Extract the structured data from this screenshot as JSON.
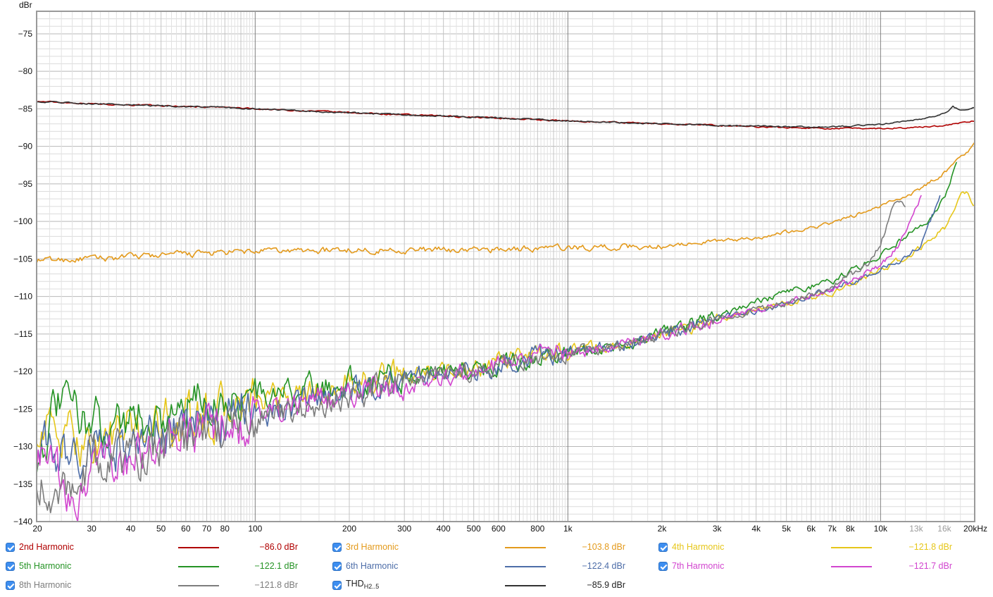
{
  "chart_data": {
    "type": "line",
    "y_unit_label": "dBr",
    "ylim": [
      -140,
      -72
    ],
    "y_ticks": [
      -75,
      -80,
      -85,
      -90,
      -95,
      -100,
      -105,
      -110,
      -115,
      -120,
      -125,
      -130,
      -135,
      -140
    ],
    "y_tick_labels": [
      "−75",
      "−80",
      "−85",
      "−90",
      "−95",
      "−100",
      "−105",
      "−110",
      "−115",
      "−120",
      "−125",
      "−130",
      "−135",
      "−140"
    ],
    "x_scale": "log",
    "xlim": [
      20,
      20000
    ],
    "x_ticks": [
      20,
      30,
      40,
      50,
      60,
      70,
      80,
      100,
      200,
      300,
      400,
      500,
      600,
      800,
      1000,
      2000,
      3000,
      4000,
      5000,
      6000,
      7000,
      8000,
      10000,
      13000,
      16000,
      20000
    ],
    "x_tick_labels": [
      "20",
      "30",
      "40",
      "50",
      "60",
      "70",
      "80",
      "100",
      "200",
      "300",
      "400",
      "500",
      "600",
      "800",
      "1k",
      "2k",
      "3k",
      "4k",
      "5k",
      "6k",
      "7k",
      "8k",
      "10k",
      "13k",
      "16k",
      "20kHz"
    ],
    "grid": true,
    "series": [
      {
        "name": "2nd Harmonic",
        "color": "#b00000",
        "value_label": "−86.0 dBr",
        "x": [
          20,
          30,
          50,
          80,
          100,
          200,
          300,
          500,
          1000,
          2000,
          3000,
          5000,
          7000,
          10000,
          13000,
          16000,
          20000
        ],
        "y": [
          -84.0,
          -84.3,
          -84.6,
          -84.8,
          -85.0,
          -85.5,
          -85.8,
          -86.1,
          -86.6,
          -87.0,
          -87.2,
          -87.5,
          -87.6,
          -87.6,
          -87.5,
          -87.2,
          -86.6
        ]
      },
      {
        "name": "3rd Harmonic",
        "color": "#e39a1c",
        "value_label": "−103.8 dBr",
        "x": [
          20,
          30,
          50,
          80,
          100,
          200,
          300,
          500,
          1000,
          2000,
          3000,
          4000,
          5000,
          6000,
          7000,
          8000,
          10000,
          13000,
          16000,
          20000
        ],
        "y": [
          -105.2,
          -105.0,
          -104.5,
          -104.2,
          -104.0,
          -103.8,
          -103.8,
          -103.8,
          -103.5,
          -103.3,
          -102.6,
          -102.2,
          -101.4,
          -100.8,
          -100.2,
          -99.4,
          -98.0,
          -96.0,
          -93.5,
          -89.7
        ]
      },
      {
        "name": "4th Harmonic",
        "color": "#e6c619",
        "value_label": "−121.8 dBr",
        "x": [
          20,
          25,
          30,
          40,
          50,
          70,
          100,
          150,
          200,
          300,
          500,
          800,
          1000,
          1500,
          2000,
          3000,
          5000,
          7000,
          10000,
          13000,
          16000,
          18000,
          19000,
          20000
        ],
        "y": [
          -127.0,
          -129.0,
          -129.5,
          -128.0,
          -127.0,
          -126.0,
          -124.5,
          -123.0,
          -121.5,
          -120.5,
          -119.5,
          -118.0,
          -117.2,
          -116.5,
          -115.3,
          -113.0,
          -111.0,
          -109.5,
          -106.5,
          -104.0,
          -101.0,
          -96.0,
          -96.5,
          -98.0
        ]
      },
      {
        "name": "5th Harmonic",
        "color": "#259325",
        "value_label": "−122.1 dBr",
        "x": [
          20,
          24,
          30,
          40,
          50,
          70,
          100,
          150,
          200,
          300,
          500,
          800,
          1000,
          1500,
          2000,
          3000,
          5000,
          7000,
          10000,
          12000,
          14000,
          16000,
          17500
        ],
        "y": [
          -131.0,
          -124.0,
          -127.0,
          -126.0,
          -126.0,
          -124.0,
          -123.5,
          -122.5,
          -121.5,
          -120.5,
          -119.5,
          -118.0,
          -117.5,
          -116.5,
          -115.0,
          -112.5,
          -109.5,
          -108.0,
          -104.5,
          -102.0,
          -100.5,
          -97.0,
          -92.5
        ]
      },
      {
        "name": "6th Harmonic",
        "color": "#4d6da8",
        "value_label": "−122.4 dBr",
        "x": [
          20,
          25,
          30,
          40,
          50,
          70,
          100,
          150,
          200,
          300,
          500,
          800,
          1000,
          1500,
          2000,
          3000,
          5000,
          7000,
          10000,
          12000,
          13500,
          15500
        ],
        "y": [
          -130.0,
          -131.0,
          -130.5,
          -129.5,
          -128.5,
          -127.0,
          -125.5,
          -124.0,
          -122.5,
          -121.0,
          -120.0,
          -118.0,
          -117.5,
          -116.5,
          -115.0,
          -113.0,
          -111.0,
          -109.0,
          -106.5,
          -105.0,
          -103.0,
          -96.5
        ]
      },
      {
        "name": "7th Harmonic",
        "color": "#d246cf",
        "value_label": "−121.7 dBr",
        "x": [
          20,
          23,
          26,
          30,
          40,
          50,
          70,
          100,
          150,
          200,
          300,
          500,
          800,
          1000,
          1500,
          2000,
          3000,
          5000,
          7000,
          10000,
          11500,
          12500,
          13500
        ],
        "y": [
          -131.0,
          -133.5,
          -139.5,
          -133.0,
          -131.5,
          -130.0,
          -128.0,
          -126.0,
          -124.0,
          -122.5,
          -121.5,
          -120.0,
          -118.0,
          -117.5,
          -116.5,
          -115.0,
          -113.0,
          -111.0,
          -109.0,
          -106.0,
          -103.0,
          -99.5,
          -96.5
        ]
      },
      {
        "name": "8th Harmonic",
        "color": "#7d7d7d",
        "value_label": "−121.8 dBr",
        "x": [
          20,
          22,
          25,
          30,
          40,
          50,
          70,
          100,
          150,
          200,
          300,
          500,
          800,
          1000,
          1500,
          2000,
          3000,
          5000,
          7000,
          9000,
          10000,
          11000,
          11500,
          12000
        ],
        "y": [
          -133.0,
          -139.0,
          -134.5,
          -132.0,
          -131.0,
          -130.0,
          -128.0,
          -126.5,
          -124.5,
          -123.0,
          -121.5,
          -120.0,
          -118.0,
          -117.5,
          -116.5,
          -115.0,
          -113.0,
          -111.0,
          -108.5,
          -106.0,
          -103.0,
          -98.0,
          -97.5,
          -98.0
        ]
      },
      {
        "name": "THDH2..5",
        "name_main": "THD",
        "name_sub": "H2..5",
        "color": "#333333",
        "value_label": "−85.9 dBr",
        "x": [
          20,
          30,
          50,
          80,
          100,
          200,
          300,
          500,
          1000,
          2000,
          3000,
          5000,
          7000,
          10000,
          13000,
          15000,
          16500,
          17000,
          18000,
          20000
        ],
        "y": [
          -84.0,
          -84.3,
          -84.6,
          -84.8,
          -85.0,
          -85.5,
          -85.8,
          -86.1,
          -86.6,
          -87.0,
          -87.2,
          -87.4,
          -87.4,
          -87.1,
          -86.5,
          -86.0,
          -85.4,
          -84.7,
          -85.2,
          -84.8
        ]
      }
    ]
  },
  "legend": {
    "items": [
      {
        "name": "2nd Harmonic",
        "value": "−86.0 dBr",
        "color": "#b00000",
        "checked": true
      },
      {
        "name": "3rd Harmonic",
        "value": "−103.8 dBr",
        "color": "#e39a1c",
        "checked": true
      },
      {
        "name": "4th Harmonic",
        "value": "−121.8 dBr",
        "color": "#e6c619",
        "checked": true
      },
      {
        "name": "5th Harmonic",
        "value": "−122.1 dBr",
        "color": "#259325",
        "checked": true
      },
      {
        "name": "6th Harmonic",
        "value": "−122.4 dBr",
        "color": "#4d6da8",
        "checked": true
      },
      {
        "name": "7th Harmonic",
        "value": "−121.7 dBr",
        "color": "#d246cf",
        "checked": true
      },
      {
        "name": "8th Harmonic",
        "value": "−121.8 dBr",
        "color": "#7d7d7d",
        "checked": true
      },
      {
        "name": "THD",
        "name_sub": "H2..5",
        "value": "−85.9 dBr",
        "color": "#333333",
        "checked": true
      }
    ]
  }
}
